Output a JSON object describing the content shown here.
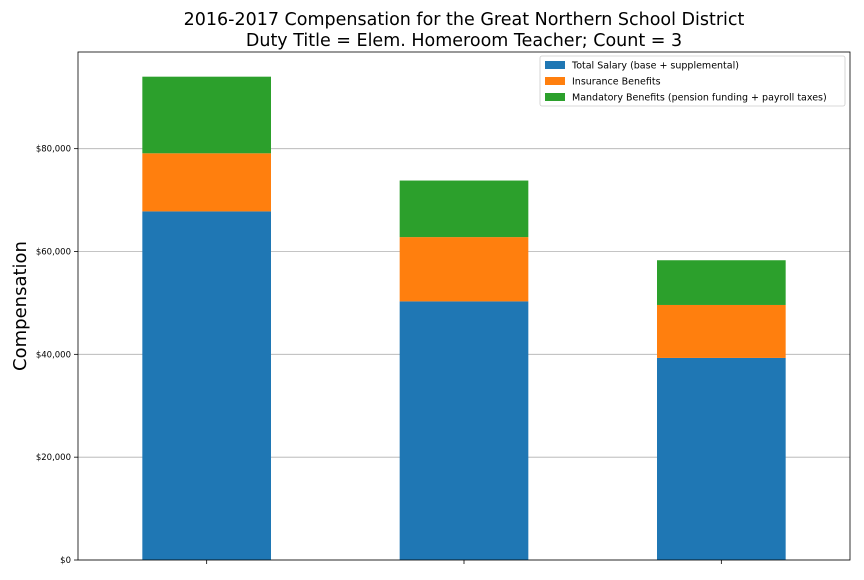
{
  "chart_data": {
    "type": "bar",
    "stacked": true,
    "title_line1": "2016-2017 Compensation for the Great Northern School District",
    "title_line2": "Duty Title = Elem. Homeroom Teacher; Count = 3",
    "xlabel": "",
    "ylabel": "Compensation",
    "categories": [
      "",
      "",
      ""
    ],
    "ylim": [
      0,
      98800
    ],
    "yticks": [
      0,
      20000,
      40000,
      60000,
      80000
    ],
    "ytick_labels": [
      "$0",
      "$20,000",
      "$40,000",
      "$60,000",
      "$80,000"
    ],
    "grid": true,
    "grid_axis": "y",
    "legend_position": "top-right",
    "series": [
      {
        "name": "Total Salary (base + supplemental)",
        "color": "#1f77b4",
        "values": [
          67800,
          50300,
          39300
        ]
      },
      {
        "name": "Insurance Benefits",
        "color": "#ff7f0e",
        "values": [
          11300,
          12500,
          10300
        ]
      },
      {
        "name": "Mandatory Benefits (pension funding + payroll taxes)",
        "color": "#2ca02c",
        "values": [
          14900,
          11000,
          8700
        ]
      }
    ]
  }
}
